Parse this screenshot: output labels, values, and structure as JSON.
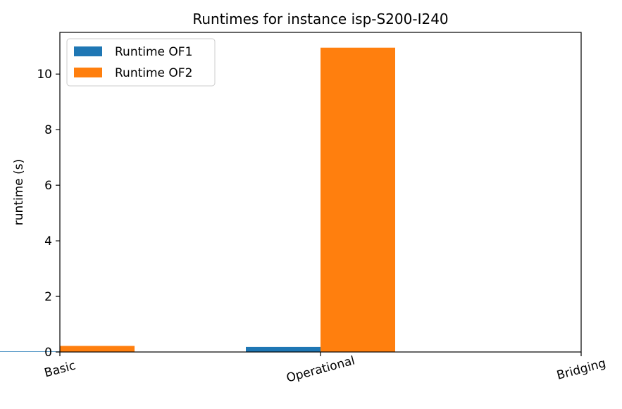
{
  "chart_data": {
    "type": "bar",
    "title": "Runtimes for instance isp-S200-I240",
    "xlabel": "",
    "ylabel": "runtime (s)",
    "categories": [
      "Basic",
      "Operational",
      "Bridging"
    ],
    "series": [
      {
        "name": "Runtime OF1",
        "color": "#1f77b4",
        "values": [
          0.02,
          0.18,
          0.0
        ]
      },
      {
        "name": "Runtime OF2",
        "color": "#ff7f0e",
        "values": [
          0.22,
          10.95,
          0.0
        ]
      }
    ],
    "ylim": [
      0,
      11.5
    ],
    "yticks": [
      0,
      2,
      4,
      6,
      8,
      10
    ],
    "grid": false,
    "legend": "top-left"
  }
}
